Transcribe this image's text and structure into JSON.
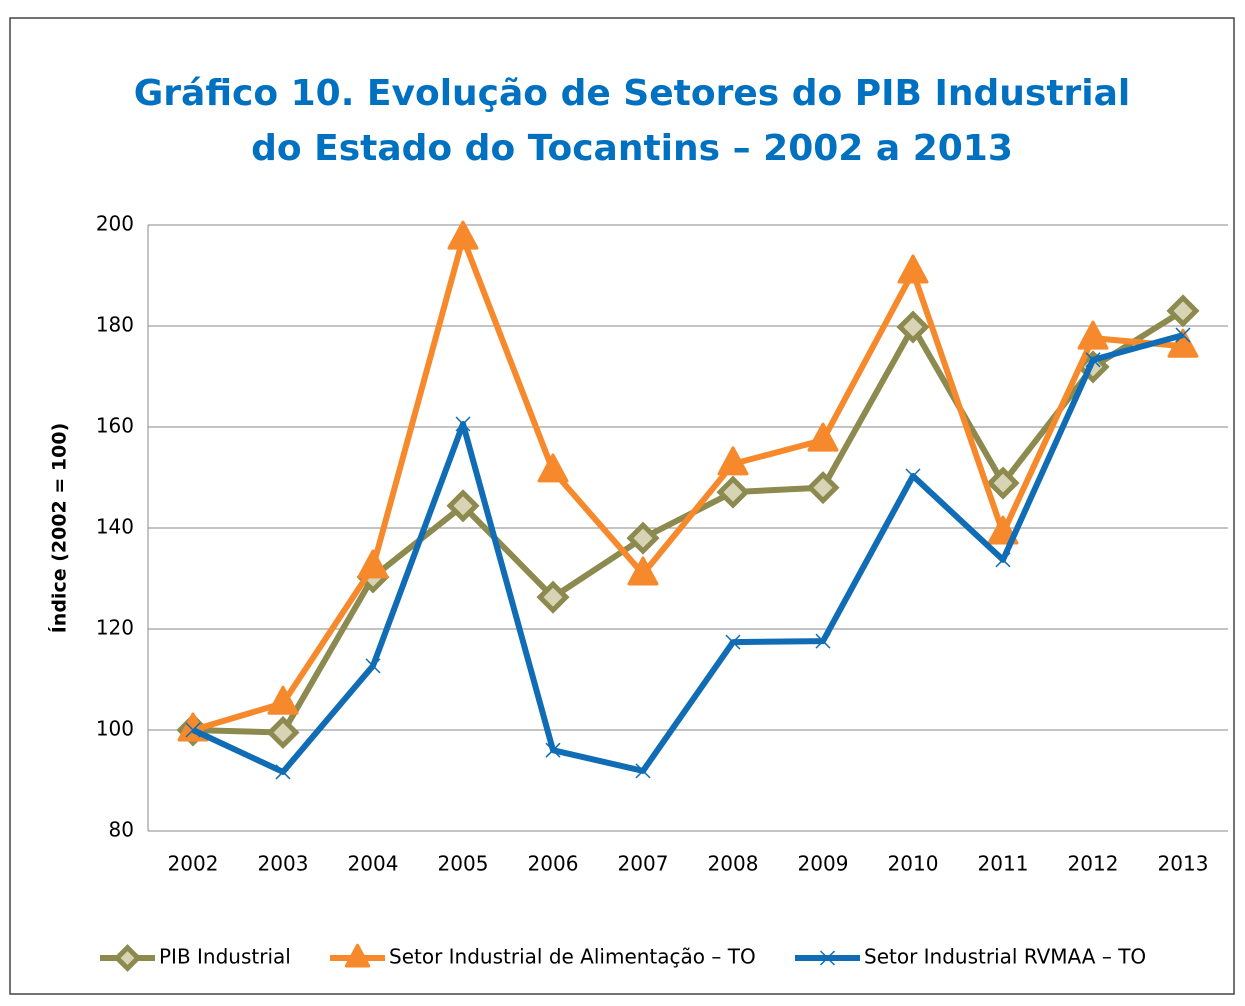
{
  "chart_data": {
    "type": "line",
    "title": [
      "Gráfico 10. Evolução de Setores do PIB Industrial",
      "do Estado do Tocantins – 2002 a 2013"
    ],
    "y_label": "Índice (2002 = 100)",
    "categories": [
      "2002",
      "2003",
      "2004",
      "2005",
      "2006",
      "2007",
      "2008",
      "2009",
      "2010",
      "2011",
      "2012",
      "2013"
    ],
    "series": [
      {
        "name": "PIB Industrial",
        "color": "#8c8a4e",
        "marker": "diamond",
        "values": [
          100,
          99.5,
          130.3,
          144.4,
          126.3,
          138,
          147.1,
          148,
          179.8,
          148.9,
          171.9,
          183
        ]
      },
      {
        "name": "Setor Industrial de Alimentação – TO",
        "color": "#f7892d",
        "marker": "triangle",
        "values": [
          100,
          105.3,
          132.3,
          197.4,
          151.3,
          130.9,
          152.7,
          157.4,
          190.7,
          139,
          177.6,
          176
        ]
      },
      {
        "name": "Setor Industrial RVMAA – TO",
        "color": "#0f6cb5",
        "marker": "x",
        "values": [
          100,
          91.7,
          112.7,
          160.6,
          96,
          91.9,
          117.4,
          117.6,
          150.3,
          133.7,
          173.3,
          178.2
        ]
      }
    ],
    "ylim": [
      80,
      200
    ],
    "yticks": [
      80,
      100,
      120,
      140,
      160,
      180,
      200
    ],
    "grid": true,
    "legend": "bottom"
  }
}
